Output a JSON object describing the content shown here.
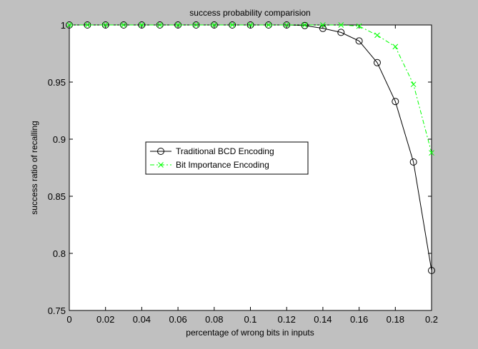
{
  "figure": {
    "background": "#c0c0c0"
  },
  "chart_data": {
    "type": "line",
    "title": "success probability comparision",
    "xlabel": "percentage of wrong bits in inputs",
    "ylabel": "success ratio of recalling",
    "xlim": [
      0,
      0.2
    ],
    "ylim": [
      0.75,
      1
    ],
    "xticks": [
      0,
      0.02,
      0.04,
      0.06,
      0.08,
      0.1,
      0.12,
      0.14,
      0.16,
      0.18,
      0.2
    ],
    "xtick_labels": [
      "0",
      "0.02",
      "0.04",
      "0.06",
      "0.08",
      "0.1",
      "0.12",
      "0.14",
      "0.16",
      "0.18",
      "0.2"
    ],
    "yticks": [
      0.75,
      0.8,
      0.85,
      0.9,
      0.95,
      1
    ],
    "ytick_labels": [
      "0.75",
      "0.8",
      "0.85",
      "0.9",
      "0.95",
      "1"
    ],
    "grid": false,
    "legend_position": "center-left",
    "x": [
      0,
      0.01,
      0.02,
      0.03,
      0.04,
      0.05,
      0.06,
      0.07,
      0.08,
      0.09,
      0.1,
      0.11,
      0.12,
      0.13,
      0.14,
      0.15,
      0.16,
      0.17,
      0.18,
      0.19,
      0.2
    ],
    "series": [
      {
        "name": "Traditional BCD Encoding",
        "color": "#000000",
        "marker": "circle",
        "linestyle": "solid",
        "values": [
          1,
          1,
          1,
          1,
          1,
          1,
          1,
          1,
          1,
          1,
          1,
          1,
          1,
          0.9995,
          0.997,
          0.9935,
          0.986,
          0.967,
          0.933,
          0.88,
          0.785
        ]
      },
      {
        "name": "Bit Importance Encoding",
        "color": "#00ff00",
        "marker": "x",
        "linestyle": "dashdot",
        "values": [
          1,
          1,
          1,
          1,
          1,
          1,
          1,
          1,
          1,
          1,
          1,
          1,
          1,
          1,
          1,
          1,
          0.999,
          0.991,
          0.981,
          0.948,
          0.888
        ]
      }
    ]
  }
}
